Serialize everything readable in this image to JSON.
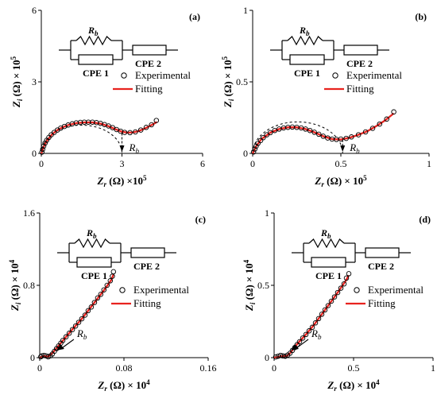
{
  "figure": {
    "circuit": {
      "resistor": "R",
      "resistor_sub": "b",
      "cpe1": "CPE 1",
      "cpe2": "CPE 2"
    },
    "legend": {
      "experimental": "Experimental",
      "fitting": "Fitting"
    },
    "colors": {
      "fit": "#e8231f",
      "marker": "#000000",
      "axis": "#000000"
    }
  },
  "chart_data": [
    {
      "id": "a",
      "type": "scatter",
      "panel_label": "(a)",
      "xlabel": {
        "main": "Z",
        "sub": "r",
        "rest": " (Ω) ×10",
        "sup": "5"
      },
      "ylabel": {
        "main": "Z",
        "sub": "i",
        "rest": " (Ω) × 10",
        "sup": "5"
      },
      "xlim": [
        0,
        6
      ],
      "ylim": [
        0,
        6
      ],
      "xticks": [
        "0",
        "3",
        "6"
      ],
      "yticks": [
        "0",
        "3",
        "6"
      ],
      "rb_value": 3.0,
      "rb_label": "R",
      "series": [
        {
          "name": "Experimental",
          "points": [
            [
              0.02,
              0.05
            ],
            [
              0.05,
              0.17
            ],
            [
              0.09,
              0.3
            ],
            [
              0.14,
              0.43
            ],
            [
              0.2,
              0.55
            ],
            [
              0.28,
              0.67
            ],
            [
              0.37,
              0.78
            ],
            [
              0.48,
              0.88
            ],
            [
              0.6,
              0.98
            ],
            [
              0.72,
              1.06
            ],
            [
              0.86,
              1.13
            ],
            [
              1.0,
              1.19
            ],
            [
              1.15,
              1.24
            ],
            [
              1.3,
              1.28
            ],
            [
              1.45,
              1.3
            ],
            [
              1.6,
              1.31
            ],
            [
              1.75,
              1.31
            ],
            [
              1.9,
              1.31
            ],
            [
              2.05,
              1.29
            ],
            [
              2.2,
              1.26
            ],
            [
              2.35,
              1.21
            ],
            [
              2.5,
              1.15
            ],
            [
              2.65,
              1.08
            ],
            [
              2.8,
              1.0
            ],
            [
              2.95,
              0.93
            ],
            [
              3.1,
              0.88
            ],
            [
              3.3,
              0.87
            ],
            [
              3.5,
              0.9
            ],
            [
              3.7,
              0.98
            ],
            [
              3.9,
              1.09
            ],
            [
              4.1,
              1.2
            ],
            [
              4.28,
              1.38
            ]
          ]
        },
        {
          "name": "Fitting",
          "points": [
            [
              0.0,
              0.0
            ],
            [
              0.1,
              0.31
            ],
            [
              0.2,
              0.52
            ],
            [
              0.4,
              0.8
            ],
            [
              0.6,
              0.98
            ],
            [
              0.8,
              1.1
            ],
            [
              1.0,
              1.19
            ],
            [
              1.3,
              1.27
            ],
            [
              1.6,
              1.3
            ],
            [
              1.9,
              1.3
            ],
            [
              2.2,
              1.25
            ],
            [
              2.5,
              1.14
            ],
            [
              2.75,
              1.02
            ],
            [
              3.0,
              0.91
            ],
            [
              3.2,
              0.87
            ],
            [
              3.4,
              0.88
            ],
            [
              3.6,
              0.93
            ],
            [
              3.8,
              1.02
            ],
            [
              4.0,
              1.13
            ],
            [
              4.2,
              1.25
            ],
            [
              4.3,
              1.32
            ]
          ]
        }
      ]
    },
    {
      "id": "b",
      "type": "scatter",
      "panel_label": "(b)",
      "xlabel": {
        "main": "Z",
        "sub": "r",
        "rest": " (Ω) × 10",
        "sup": "5"
      },
      "ylabel": {
        "main": "Z",
        "sub": "i",
        "rest": " (Ω) × 10",
        "sup": "5"
      },
      "xlim": [
        0,
        1
      ],
      "ylim": [
        0,
        1
      ],
      "xticks": [
        "0",
        "0.5",
        "1"
      ],
      "yticks": [
        "0",
        "0.5",
        "1"
      ],
      "rb_value": 0.51,
      "rb_label": "R",
      "series": [
        {
          "name": "Experimental",
          "points": [
            [
              0.005,
              0.01
            ],
            [
              0.012,
              0.03
            ],
            [
              0.02,
              0.05
            ],
            [
              0.03,
              0.07
            ],
            [
              0.045,
              0.09
            ],
            [
              0.06,
              0.11
            ],
            [
              0.08,
              0.13
            ],
            [
              0.1,
              0.145
            ],
            [
              0.125,
              0.16
            ],
            [
              0.15,
              0.17
            ],
            [
              0.175,
              0.178
            ],
            [
              0.2,
              0.182
            ],
            [
              0.225,
              0.184
            ],
            [
              0.25,
              0.182
            ],
            [
              0.275,
              0.178
            ],
            [
              0.3,
              0.17
            ],
            [
              0.325,
              0.16
            ],
            [
              0.35,
              0.148
            ],
            [
              0.375,
              0.134
            ],
            [
              0.4,
              0.12
            ],
            [
              0.425,
              0.108
            ],
            [
              0.45,
              0.1
            ],
            [
              0.475,
              0.098
            ],
            [
              0.5,
              0.1
            ],
            [
              0.53,
              0.105
            ],
            [
              0.56,
              0.115
            ],
            [
              0.6,
              0.13
            ],
            [
              0.64,
              0.15
            ],
            [
              0.68,
              0.175
            ],
            [
              0.72,
              0.205
            ],
            [
              0.76,
              0.24
            ],
            [
              0.8,
              0.29
            ]
          ]
        },
        {
          "name": "Fitting",
          "points": [
            [
              0.0,
              0.0
            ],
            [
              0.02,
              0.05
            ],
            [
              0.05,
              0.1
            ],
            [
              0.1,
              0.145
            ],
            [
              0.15,
              0.17
            ],
            [
              0.2,
              0.182
            ],
            [
              0.25,
              0.182
            ],
            [
              0.3,
              0.17
            ],
            [
              0.35,
              0.148
            ],
            [
              0.4,
              0.12
            ],
            [
              0.45,
              0.1
            ],
            [
              0.5,
              0.097
            ],
            [
              0.55,
              0.11
            ],
            [
              0.6,
              0.13
            ],
            [
              0.65,
              0.155
            ],
            [
              0.7,
              0.19
            ],
            [
              0.75,
              0.23
            ],
            [
              0.8,
              0.28
            ]
          ]
        }
      ]
    },
    {
      "id": "c",
      "type": "scatter",
      "panel_label": "(c)",
      "xlabel": {
        "main": "Z",
        "sub": "r",
        "rest": " (Ω) × 10",
        "sup": "4"
      },
      "ylabel": {
        "main": "Z",
        "sub": "i",
        "rest": " (Ω) × 10",
        "sup": "4"
      },
      "xlim": [
        0,
        0.16
      ],
      "ylim": [
        0,
        1.6
      ],
      "xticks": [
        "0",
        "0.08",
        "0.16"
      ],
      "yticks": [
        "0",
        "0.8",
        "1.6"
      ],
      "rb_value": 0.012,
      "rb_label": "R",
      "series": [
        {
          "name": "Experimental",
          "points": [
            [
              0.001,
              0.01
            ],
            [
              0.002,
              0.02
            ],
            [
              0.004,
              0.025
            ],
            [
              0.006,
              0.02
            ],
            [
              0.008,
              0.01
            ],
            [
              0.01,
              0.02
            ],
            [
              0.012,
              0.04
            ],
            [
              0.014,
              0.07
            ],
            [
              0.016,
              0.1
            ],
            [
              0.018,
              0.13
            ],
            [
              0.02,
              0.16
            ],
            [
              0.022,
              0.19
            ],
            [
              0.025,
              0.23
            ],
            [
              0.028,
              0.27
            ],
            [
              0.031,
              0.31
            ],
            [
              0.034,
              0.35
            ],
            [
              0.037,
              0.39
            ],
            [
              0.04,
              0.43
            ],
            [
              0.043,
              0.47
            ],
            [
              0.046,
              0.52
            ],
            [
              0.049,
              0.56
            ],
            [
              0.052,
              0.61
            ],
            [
              0.055,
              0.66
            ],
            [
              0.058,
              0.7
            ],
            [
              0.061,
              0.75
            ],
            [
              0.064,
              0.8
            ],
            [
              0.067,
              0.85
            ],
            [
              0.069,
              0.9
            ],
            [
              0.07,
              0.95
            ]
          ]
        },
        {
          "name": "Fitting",
          "points": [
            [
              0.0,
              0.0
            ],
            [
              0.004,
              0.02
            ],
            [
              0.008,
              0.01
            ],
            [
              0.012,
              0.05
            ],
            [
              0.02,
              0.16
            ],
            [
              0.03,
              0.3
            ],
            [
              0.04,
              0.43
            ],
            [
              0.05,
              0.58
            ],
            [
              0.06,
              0.73
            ],
            [
              0.068,
              0.86
            ],
            [
              0.07,
              0.92
            ]
          ]
        }
      ]
    },
    {
      "id": "d",
      "type": "scatter",
      "panel_label": "(d)",
      "xlabel": {
        "main": "Z",
        "sub": "r",
        "rest": " (Ω) × 10",
        "sup": "4"
      },
      "ylabel": {
        "main": "Z",
        "sub": "i",
        "rest": " (Ω) × 10",
        "sup": "4"
      },
      "xlim": [
        0,
        1
      ],
      "ylim": [
        0,
        1
      ],
      "xticks": [
        "0",
        "0.5",
        "1"
      ],
      "yticks": [
        "0",
        "0.5",
        "1"
      ],
      "rb_value": 0.08,
      "rb_label": "R",
      "series": [
        {
          "name": "Experimental",
          "points": [
            [
              0.01,
              0.005
            ],
            [
              0.025,
              0.01
            ],
            [
              0.04,
              0.015
            ],
            [
              0.055,
              0.012
            ],
            [
              0.07,
              0.01
            ],
            [
              0.085,
              0.018
            ],
            [
              0.1,
              0.03
            ],
            [
              0.115,
              0.05
            ],
            [
              0.13,
              0.07
            ],
            [
              0.145,
              0.09
            ],
            [
              0.16,
              0.11
            ],
            [
              0.18,
              0.135
            ],
            [
              0.2,
              0.16
            ],
            [
              0.22,
              0.185
            ],
            [
              0.24,
              0.21
            ],
            [
              0.26,
              0.24
            ],
            [
              0.28,
              0.27
            ],
            [
              0.3,
              0.3
            ],
            [
              0.32,
              0.33
            ],
            [
              0.34,
              0.36
            ],
            [
              0.36,
              0.39
            ],
            [
              0.38,
              0.42
            ],
            [
              0.4,
              0.45
            ],
            [
              0.42,
              0.48
            ],
            [
              0.44,
              0.51
            ],
            [
              0.455,
              0.55
            ],
            [
              0.47,
              0.58
            ]
          ]
        },
        {
          "name": "Fitting",
          "points": [
            [
              0.0,
              0.0
            ],
            [
              0.05,
              0.01
            ],
            [
              0.08,
              0.012
            ],
            [
              0.1,
              0.03
            ],
            [
              0.15,
              0.1
            ],
            [
              0.2,
              0.16
            ],
            [
              0.25,
              0.225
            ],
            [
              0.3,
              0.3
            ],
            [
              0.35,
              0.375
            ],
            [
              0.4,
              0.45
            ],
            [
              0.45,
              0.53
            ],
            [
              0.47,
              0.57
            ]
          ]
        }
      ]
    }
  ]
}
